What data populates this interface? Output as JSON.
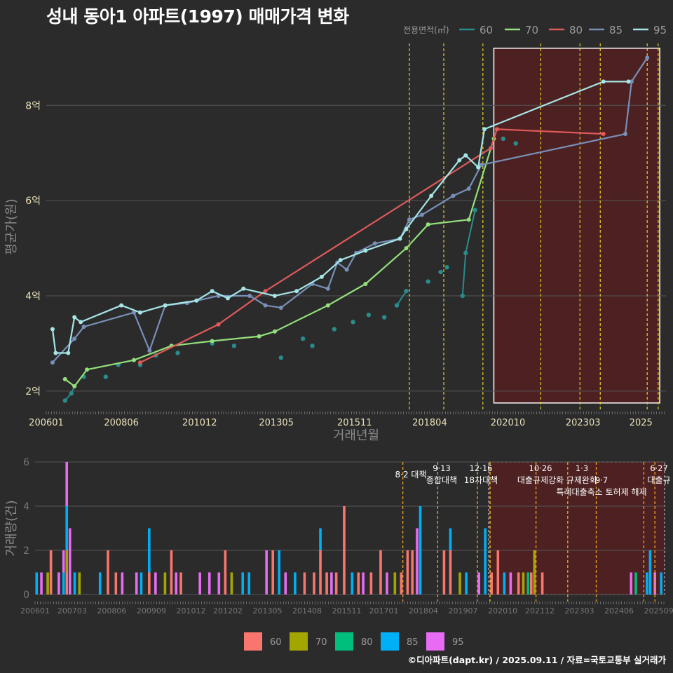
{
  "title": "성내 동아1 아파트(1997) 매매가격 변화",
  "credit": "©디아파트(dapt.kr) / 2025.09.11 / 자료=국토교통부 실거래가",
  "colors": {
    "60": "#2a8b8b",
    "70": "#94e07a",
    "80": "#e05a5a",
    "85": "#7890b8",
    "95": "#a6e6e6"
  },
  "bar_colors": {
    "60": "#f8766d",
    "70": "#a3a500",
    "80": "#00bf7d",
    "85": "#00b0f6",
    "95": "#e76bf3"
  },
  "chart_data": [
    {
      "type": "line",
      "title": "성내 동아1 아파트(1997) 매매가격 변화",
      "xlabel": "거래년월",
      "ylabel": "평균가(원)",
      "x_ticks": [
        "200601",
        "200806",
        "201012",
        "201305",
        "201511",
        "201804",
        "202010",
        "202303",
        "2025"
      ],
      "y_ticks": [
        "2억",
        "4억",
        "6억",
        "8억"
      ],
      "ylim": [
        1.6,
        9.3
      ],
      "legend": {
        "title": "전용면적(㎡)",
        "position": "top-right",
        "entries": [
          "60",
          "70",
          "80",
          "85",
          "95"
        ]
      },
      "series": [
        {
          "name": "60",
          "points": [
            [
              2006.6,
              1.8
            ],
            [
              2006.8,
              1.95
            ],
            [
              2007.2,
              2.3
            ],
            [
              2007.9,
              2.3
            ],
            [
              2008.3,
              2.55
            ],
            [
              2009.0,
              2.55
            ],
            [
              2009.5,
              2.75
            ],
            [
              2010.2,
              2.8
            ],
            [
              2011.3,
              3.0
            ],
            [
              2012.0,
              2.95
            ],
            [
              2013.5,
              2.7
            ],
            [
              2014.2,
              3.1
            ],
            [
              2014.5,
              2.95
            ],
            [
              2015.2,
              3.3
            ],
            [
              2015.8,
              3.45
            ],
            [
              2016.3,
              3.6
            ],
            [
              2016.8,
              3.55
            ],
            [
              2017.2,
              3.8
            ],
            [
              2017.5,
              4.1
            ],
            [
              2018.2,
              4.3
            ],
            [
              2018.6,
              4.5
            ],
            [
              2018.8,
              4.6
            ],
            [
              2019.3,
              4.0
            ],
            [
              2019.4,
              4.9
            ],
            [
              2019.7,
              5.8
            ],
            [
              2020.6,
              7.3
            ],
            [
              2021.0,
              7.2
            ]
          ]
        },
        {
          "name": "70",
          "points": [
            [
              2006.6,
              2.25
            ],
            [
              2006.9,
              2.1
            ],
            [
              2007.3,
              2.45
            ],
            [
              2008.8,
              2.65
            ],
            [
              2010.0,
              2.95
            ],
            [
              2011.3,
              3.05
            ],
            [
              2012.8,
              3.15
            ],
            [
              2013.3,
              3.25
            ],
            [
              2015.0,
              3.8
            ],
            [
              2016.2,
              4.25
            ],
            [
              2017.5,
              5.0
            ],
            [
              2018.2,
              5.5
            ],
            [
              2019.5,
              5.6
            ],
            [
              2020.3,
              7.3
            ]
          ]
        },
        {
          "name": "80",
          "points": [
            [
              2009.0,
              2.6
            ],
            [
              2011.5,
              3.4
            ],
            [
              2013.0,
              4.1
            ],
            [
              2020.2,
              7.1
            ],
            [
              2020.4,
              7.5
            ],
            [
              2023.8,
              7.4
            ]
          ]
        },
        {
          "name": "85",
          "points": [
            [
              2006.2,
              2.6
            ],
            [
              2006.9,
              3.1
            ],
            [
              2007.2,
              3.35
            ],
            [
              2008.8,
              3.65
            ],
            [
              2009.3,
              2.85
            ],
            [
              2009.8,
              3.8
            ],
            [
              2010.5,
              3.85
            ],
            [
              2011.5,
              4.0
            ],
            [
              2012.5,
              4.0
            ],
            [
              2013.0,
              3.8
            ],
            [
              2013.5,
              3.75
            ],
            [
              2014.5,
              4.25
            ],
            [
              2015.0,
              4.15
            ],
            [
              2015.3,
              4.7
            ],
            [
              2015.6,
              4.55
            ],
            [
              2015.9,
              4.9
            ],
            [
              2016.5,
              5.1
            ],
            [
              2017.3,
              5.2
            ],
            [
              2017.6,
              5.6
            ],
            [
              2018.0,
              5.7
            ],
            [
              2019.0,
              6.1
            ],
            [
              2019.5,
              6.25
            ],
            [
              2019.9,
              6.75
            ],
            [
              2024.5,
              7.4
            ],
            [
              2024.7,
              8.5
            ],
            [
              2025.2,
              9.0
            ]
          ]
        },
        {
          "name": "95",
          "points": [
            [
              2006.2,
              3.3
            ],
            [
              2006.3,
              2.8
            ],
            [
              2006.7,
              2.8
            ],
            [
              2006.9,
              3.55
            ],
            [
              2007.1,
              3.45
            ],
            [
              2008.4,
              3.8
            ],
            [
              2009.0,
              3.65
            ],
            [
              2009.8,
              3.8
            ],
            [
              2010.8,
              3.9
            ],
            [
              2011.3,
              4.1
            ],
            [
              2011.8,
              3.95
            ],
            [
              2012.3,
              4.15
            ],
            [
              2013.3,
              4.0
            ],
            [
              2014.0,
              4.1
            ],
            [
              2014.8,
              4.4
            ],
            [
              2015.4,
              4.75
            ],
            [
              2016.2,
              4.95
            ],
            [
              2017.3,
              5.2
            ],
            [
              2017.5,
              5.4
            ],
            [
              2018.3,
              6.1
            ],
            [
              2019.2,
              6.85
            ],
            [
              2019.4,
              6.95
            ],
            [
              2019.8,
              6.7
            ],
            [
              2020.0,
              7.5
            ],
            [
              2023.8,
              8.5
            ],
            [
              2024.6,
              8.5
            ]
          ]
        }
      ]
    },
    {
      "type": "bar",
      "ylabel": "거래량(건)",
      "y_ticks": [
        "0",
        "2",
        "4",
        "6"
      ],
      "ylim": [
        0,
        6
      ],
      "x_ticks": [
        "200601",
        "200703",
        "200806",
        "200909",
        "201012",
        "201202",
        "201305",
        "201408",
        "201511",
        "201701",
        "201804",
        "201907",
        "202010",
        "202112",
        "202303",
        "202406",
        "202509"
      ],
      "legend": {
        "position": "bottom",
        "entries": [
          "60",
          "70",
          "80",
          "85",
          "95"
        ]
      },
      "annotations": [
        {
          "date": "8·2",
          "text": "8·2 대책"
        },
        {
          "date": "9·13",
          "text": "종합대책"
        },
        {
          "date": "12·16",
          "text": "18차대책"
        },
        {
          "date": "10·26",
          "text": "대출규제강화"
        },
        {
          "date": "1·3",
          "text": "규제완화"
        },
        {
          "date": "9·7",
          "text": "특례대출축소 토허제 해제"
        },
        {
          "date": "6·27",
          "text": "대출규"
        }
      ],
      "bars": [
        [
          2006.05,
          {
            "85": 1
          }
        ],
        [
          2006.2,
          {
            "95": 1
          }
        ],
        [
          2006.4,
          {
            "70": 1
          }
        ],
        [
          2006.5,
          {
            "60": 2
          }
        ],
        [
          2006.75,
          {
            "95": 1
          }
        ],
        [
          2006.9,
          {
            "85": 1,
            "95": 1
          }
        ],
        [
          2007.0,
          {
            "60": 1,
            "70": 1,
            "85": 2,
            "95": 2
          }
        ],
        [
          2007.1,
          {
            "95": 3
          }
        ],
        [
          2007.25,
          {
            "85": 1
          }
        ],
        [
          2007.4,
          {
            "70": 1
          }
        ],
        [
          2008.05,
          {
            "85": 1
          }
        ],
        [
          2008.3,
          {
            "60": 2
          }
        ],
        [
          2008.55,
          {
            "60": 1
          }
        ],
        [
          2008.75,
          {
            "95": 1
          }
        ],
        [
          2009.2,
          {
            "95": 1
          }
        ],
        [
          2009.35,
          {
            "85": 1
          }
        ],
        [
          2009.6,
          {
            "60": 1,
            "85": 2
          }
        ],
        [
          2009.8,
          {
            "95": 1
          }
        ],
        [
          2010.1,
          {
            "70": 1
          }
        ],
        [
          2010.3,
          {
            "60": 2
          }
        ],
        [
          2010.45,
          {
            "95": 1
          }
        ],
        [
          2010.6,
          {
            "60": 1
          }
        ],
        [
          2011.2,
          {
            "95": 1
          }
        ],
        [
          2011.5,
          {
            "95": 1
          }
        ],
        [
          2011.8,
          {
            "95": 1
          }
        ],
        [
          2012.0,
          {
            "60": 2
          }
        ],
        [
          2012.2,
          {
            "70": 1
          }
        ],
        [
          2012.55,
          {
            "85": 1
          }
        ],
        [
          2012.75,
          {
            "85": 1
          }
        ],
        [
          2013.3,
          {
            "95": 2
          }
        ],
        [
          2013.5,
          {
            "60": 2
          }
        ],
        [
          2013.7,
          {
            "85": 2
          }
        ],
        [
          2013.9,
          {
            "95": 1
          }
        ],
        [
          2014.2,
          {
            "85": 1
          }
        ],
        [
          2014.5,
          {
            "60": 1
          }
        ],
        [
          2014.8,
          {
            "60": 1
          }
        ],
        [
          2015.0,
          {
            "60": 2,
            "85": 1
          }
        ],
        [
          2015.2,
          {
            "60": 1
          }
        ],
        [
          2015.35,
          {
            "95": 1
          }
        ],
        [
          2015.5,
          {
            "60": 1
          }
        ],
        [
          2015.75,
          {
            "60": 4
          }
        ],
        [
          2016.0,
          {
            "85": 1
          }
        ],
        [
          2016.2,
          {
            "60": 1
          }
        ],
        [
          2016.35,
          {
            "95": 1
          }
        ],
        [
          2016.6,
          {
            "60": 1
          }
        ],
        [
          2016.9,
          {
            "60": 2
          }
        ],
        [
          2017.1,
          {
            "95": 1
          }
        ],
        [
          2017.35,
          {
            "70": 1
          }
        ],
        [
          2017.55,
          {
            "60": 1
          }
        ],
        [
          2017.75,
          {
            "60": 2
          }
        ],
        [
          2017.9,
          {
            "60": 2
          }
        ],
        [
          2018.05,
          {
            "95": 3
          }
        ],
        [
          2018.15,
          {
            "85": 4
          }
        ],
        [
          2018.9,
          {
            "60": 2
          }
        ],
        [
          2019.1,
          {
            "60": 2,
            "85": 1
          }
        ],
        [
          2019.4,
          {
            "70": 1
          }
        ],
        [
          2019.6,
          {
            "85": 1
          }
        ],
        [
          2020.0,
          {
            "95": 1
          }
        ],
        [
          2020.2,
          {
            "85": 3
          }
        ],
        [
          2020.4,
          {
            "60": 1
          }
        ],
        [
          2020.6,
          {
            "60": 2
          }
        ],
        [
          2020.8,
          {
            "85": 1
          }
        ],
        [
          2021.0,
          {
            "95": 1
          }
        ],
        [
          2021.25,
          {
            "60": 1
          }
        ],
        [
          2021.4,
          {
            "70": 1
          }
        ],
        [
          2021.55,
          {
            "80": 1
          }
        ],
        [
          2021.65,
          {
            "60": 1
          }
        ],
        [
          2021.75,
          {
            "70": 2
          }
        ],
        [
          2022.0,
          {
            "60": 1
          }
        ],
        [
          2024.8,
          {
            "95": 1
          }
        ],
        [
          2024.95,
          {
            "80": 1
          }
        ],
        [
          2025.3,
          {
            "85": 1
          }
        ],
        [
          2025.4,
          {
            "85": 2
          }
        ],
        [
          2025.55,
          {
            "95": 1
          }
        ],
        [
          2025.75,
          {
            "85": 1
          }
        ]
      ]
    }
  ]
}
